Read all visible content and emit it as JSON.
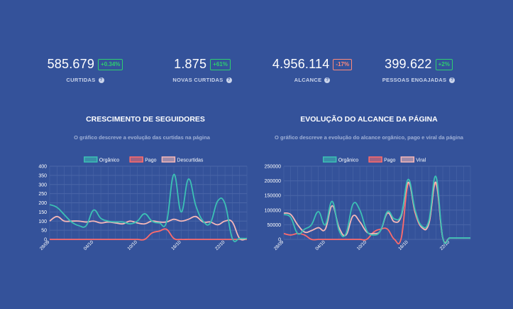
{
  "kpis": [
    {
      "value": "585.679",
      "badge": "+0.34%",
      "badge_type": "pos",
      "label": "CURTIDAS"
    },
    {
      "value": "1.875",
      "badge": "+61%",
      "badge_type": "pos",
      "label": "NOVAS CURTIDAS"
    },
    {
      "value": "4.956.114",
      "badge": "-17%",
      "badge_type": "neg",
      "label": "ALCANCE"
    },
    {
      "value": "399.622",
      "badge": "+2%",
      "badge_type": "pos",
      "label": "PESSOAS ENGAJADAS"
    }
  ],
  "help_glyph": "?",
  "colors": {
    "background": "#34529a",
    "positive": "#2ecf70",
    "negative": "#ff8a7a",
    "grid": "#4a66a8"
  },
  "charts": [
    {
      "title": "CRESCIMENTO DE SEGUIDORES",
      "subtitle": "O gráfico descreve a evolução das curtidas na página"
    },
    {
      "title": "EVOLUÇÃO DO ALCANCE DA PÁGINA",
      "subtitle": "O gráfico descreve a evolução do alcance orgânico, pago e viral da página"
    }
  ],
  "chart_data": [
    {
      "type": "line",
      "title": "CRESCIMENTO DE SEGUIDORES",
      "x": [
        "28/09",
        "29/09",
        "30/09",
        "01/10",
        "02/10",
        "03/10",
        "04/10",
        "05/10",
        "06/10",
        "07/10",
        "08/10",
        "09/10",
        "10/10",
        "11/10",
        "12/10",
        "13/10",
        "14/10",
        "15/10",
        "16/10",
        "17/10",
        "18/10",
        "19/10",
        "20/10",
        "21/10",
        "22/10",
        "23/10",
        "24/10",
        "25/10"
      ],
      "x_tick_labels": [
        "28/09",
        "04/10",
        "10/10",
        "16/10",
        "22/10"
      ],
      "ylim": [
        0,
        400
      ],
      "y_ticks": [
        0,
        50,
        100,
        150,
        200,
        250,
        300,
        350,
        400
      ],
      "grid": true,
      "legend_position": "top",
      "series": [
        {
          "name": "Orgânico",
          "color": "#3cc0b4",
          "values": [
            190,
            175,
            135,
            95,
            75,
            75,
            160,
            115,
            100,
            95,
            95,
            85,
            100,
            140,
            100,
            90,
            95,
            355,
            150,
            330,
            185,
            100,
            90,
            210,
            195,
            5,
            5,
            5
          ]
        },
        {
          "name": "Pago",
          "color": "#ff6b6b",
          "values": [
            0,
            0,
            0,
            0,
            0,
            0,
            0,
            0,
            0,
            0,
            0,
            0,
            0,
            0,
            35,
            45,
            55,
            5,
            0,
            0,
            0,
            0,
            0,
            0,
            0,
            0,
            0,
            0
          ]
        },
        {
          "name": "Descurtidas",
          "color": "#f6b8b8",
          "values": [
            100,
            125,
            100,
            100,
            100,
            95,
            100,
            90,
            95,
            90,
            85,
            100,
            90,
            85,
            100,
            95,
            95,
            110,
            100,
            110,
            125,
            95,
            95,
            80,
            100,
            95,
            5,
            5
          ]
        }
      ]
    },
    {
      "type": "line",
      "title": "EVOLUÇÃO DO ALCANCE DA PÁGINA",
      "x": [
        "28/09",
        "29/09",
        "30/09",
        "01/10",
        "02/10",
        "03/10",
        "04/10",
        "05/10",
        "06/10",
        "07/10",
        "08/10",
        "09/10",
        "10/10",
        "11/10",
        "12/10",
        "13/10",
        "14/10",
        "15/10",
        "16/10",
        "17/10",
        "18/10",
        "19/10",
        "20/10",
        "21/10",
        "22/10",
        "23/10",
        "24/10",
        "25/10"
      ],
      "x_tick_labels": [
        "28/09",
        "04/10",
        "10/10",
        "16/10",
        "22/10"
      ],
      "ylim": [
        0,
        250000
      ],
      "y_ticks": [
        0,
        50000,
        100000,
        150000,
        200000,
        250000
      ],
      "grid": true,
      "legend_position": "top",
      "series": [
        {
          "name": "Orgânico",
          "color": "#3cc0b4",
          "values": [
            85000,
            75000,
            20000,
            35000,
            50000,
            95000,
            50000,
            130000,
            30000,
            20000,
            120000,
            100000,
            30000,
            15000,
            30000,
            95000,
            70000,
            85000,
            205000,
            100000,
            45000,
            65000,
            215000,
            5000,
            5000,
            5000,
            5000,
            5000
          ]
        },
        {
          "name": "Pago",
          "color": "#ff6b6b",
          "values": [
            20000,
            15000,
            20000,
            15000,
            0,
            0,
            0,
            0,
            0,
            0,
            0,
            0,
            0,
            25000,
            35000,
            35000,
            0,
            5000,
            190000,
            90000,
            40000,
            55000,
            190000,
            5000,
            5000,
            5000,
            5000,
            5000
          ]
        },
        {
          "name": "Viral",
          "color": "#f6b8b8",
          "values": [
            90000,
            85000,
            50000,
            25000,
            30000,
            40000,
            35000,
            115000,
            40000,
            15000,
            80000,
            60000,
            25000,
            20000,
            30000,
            90000,
            60000,
            80000,
            195000,
            95000,
            40000,
            55000,
            195000,
            5000,
            5000,
            5000,
            5000,
            5000
          ]
        }
      ]
    }
  ]
}
